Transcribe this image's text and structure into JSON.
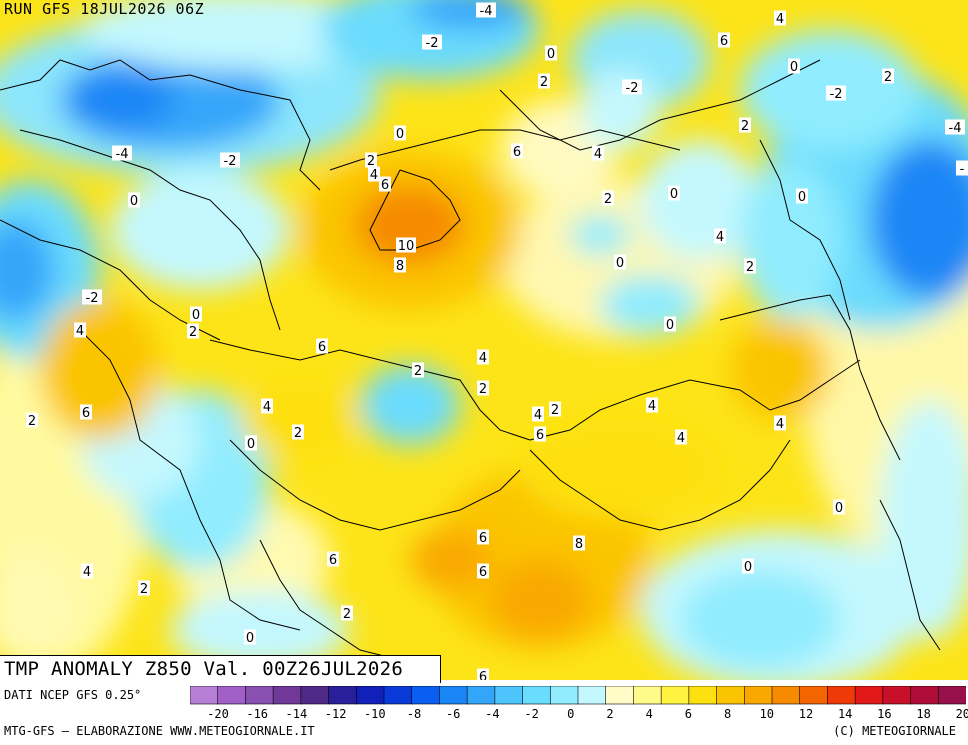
{
  "header": {
    "run_title": "RUN GFS 18JUL2026 06Z"
  },
  "product": {
    "title": "TMP ANOMALY Z850 Val. 00Z26JUL2026"
  },
  "footer": {
    "data_source": "DATI NCEP GFS 0.25°",
    "credit_left": "MTG-GFS — ELABORAZIONE WWW.METEOGIORNALE.IT",
    "credit_right": "(C) METEOGIORNALE"
  },
  "scale": {
    "colors": [
      "#b87fd6",
      "#a060c8",
      "#8850b0",
      "#703898",
      "#502888",
      "#2a1f9a",
      "#1020b8",
      "#0a3ad8",
      "#0a5ef0",
      "#1a86f6",
      "#34a6fa",
      "#4ec4fc",
      "#6adcfd",
      "#90ecfe",
      "#c4f8fe",
      "#fffcc8",
      "#fffa8a",
      "#fff240",
      "#fde010",
      "#fbc400",
      "#f9a800",
      "#f68a00",
      "#f46400",
      "#ef3a08",
      "#e01818",
      "#c8102a",
      "#b00c3a",
      "#98104a"
    ],
    "tick_labels": [
      "-20",
      "-16",
      "-14",
      "-12",
      "-10",
      "-8",
      "-6",
      "-4",
      "-2",
      "0",
      "2",
      "4",
      "6",
      "8",
      "10",
      "12",
      "14",
      "16",
      "18",
      "20"
    ]
  },
  "map_labels": [
    {
      "text": "-4"
    },
    {
      "text": "4"
    },
    {
      "text": "-2"
    },
    {
      "text": "6"
    },
    {
      "text": "0"
    },
    {
      "text": "2"
    },
    {
      "text": "2"
    },
    {
      "text": "0"
    },
    {
      "text": "-2"
    },
    {
      "text": "-2"
    },
    {
      "text": "-4"
    },
    {
      "text": "2"
    },
    {
      "text": "-4"
    },
    {
      "text": "-2"
    },
    {
      "text": "0"
    },
    {
      "text": "6"
    },
    {
      "text": "4"
    },
    {
      "text": "2"
    },
    {
      "text": "4"
    },
    {
      "text": "6"
    },
    {
      "text": "0"
    },
    {
      "text": "0"
    },
    {
      "text": "2"
    },
    {
      "text": "10"
    },
    {
      "text": "8"
    },
    {
      "text": "4"
    },
    {
      "text": "0"
    },
    {
      "text": "2"
    },
    {
      "text": "-2"
    },
    {
      "text": "0"
    },
    {
      "text": "4"
    },
    {
      "text": "2"
    },
    {
      "text": "0"
    },
    {
      "text": "6"
    },
    {
      "text": "0"
    },
    {
      "text": "4"
    },
    {
      "text": "2"
    },
    {
      "text": "2"
    },
    {
      "text": "6"
    },
    {
      "text": "4"
    },
    {
      "text": "2"
    },
    {
      "text": "4"
    },
    {
      "text": "6"
    },
    {
      "text": "4"
    },
    {
      "text": "4"
    },
    {
      "text": "2"
    },
    {
      "text": "0"
    },
    {
      "text": "2"
    },
    {
      "text": "4"
    },
    {
      "text": "0"
    },
    {
      "text": "6"
    },
    {
      "text": "8"
    },
    {
      "text": "6"
    },
    {
      "text": "6"
    },
    {
      "text": "0"
    },
    {
      "text": "4"
    },
    {
      "text": "2"
    },
    {
      "text": "2"
    },
    {
      "text": "0"
    },
    {
      "text": "6"
    },
    {
      "text": "-"
    }
  ]
}
